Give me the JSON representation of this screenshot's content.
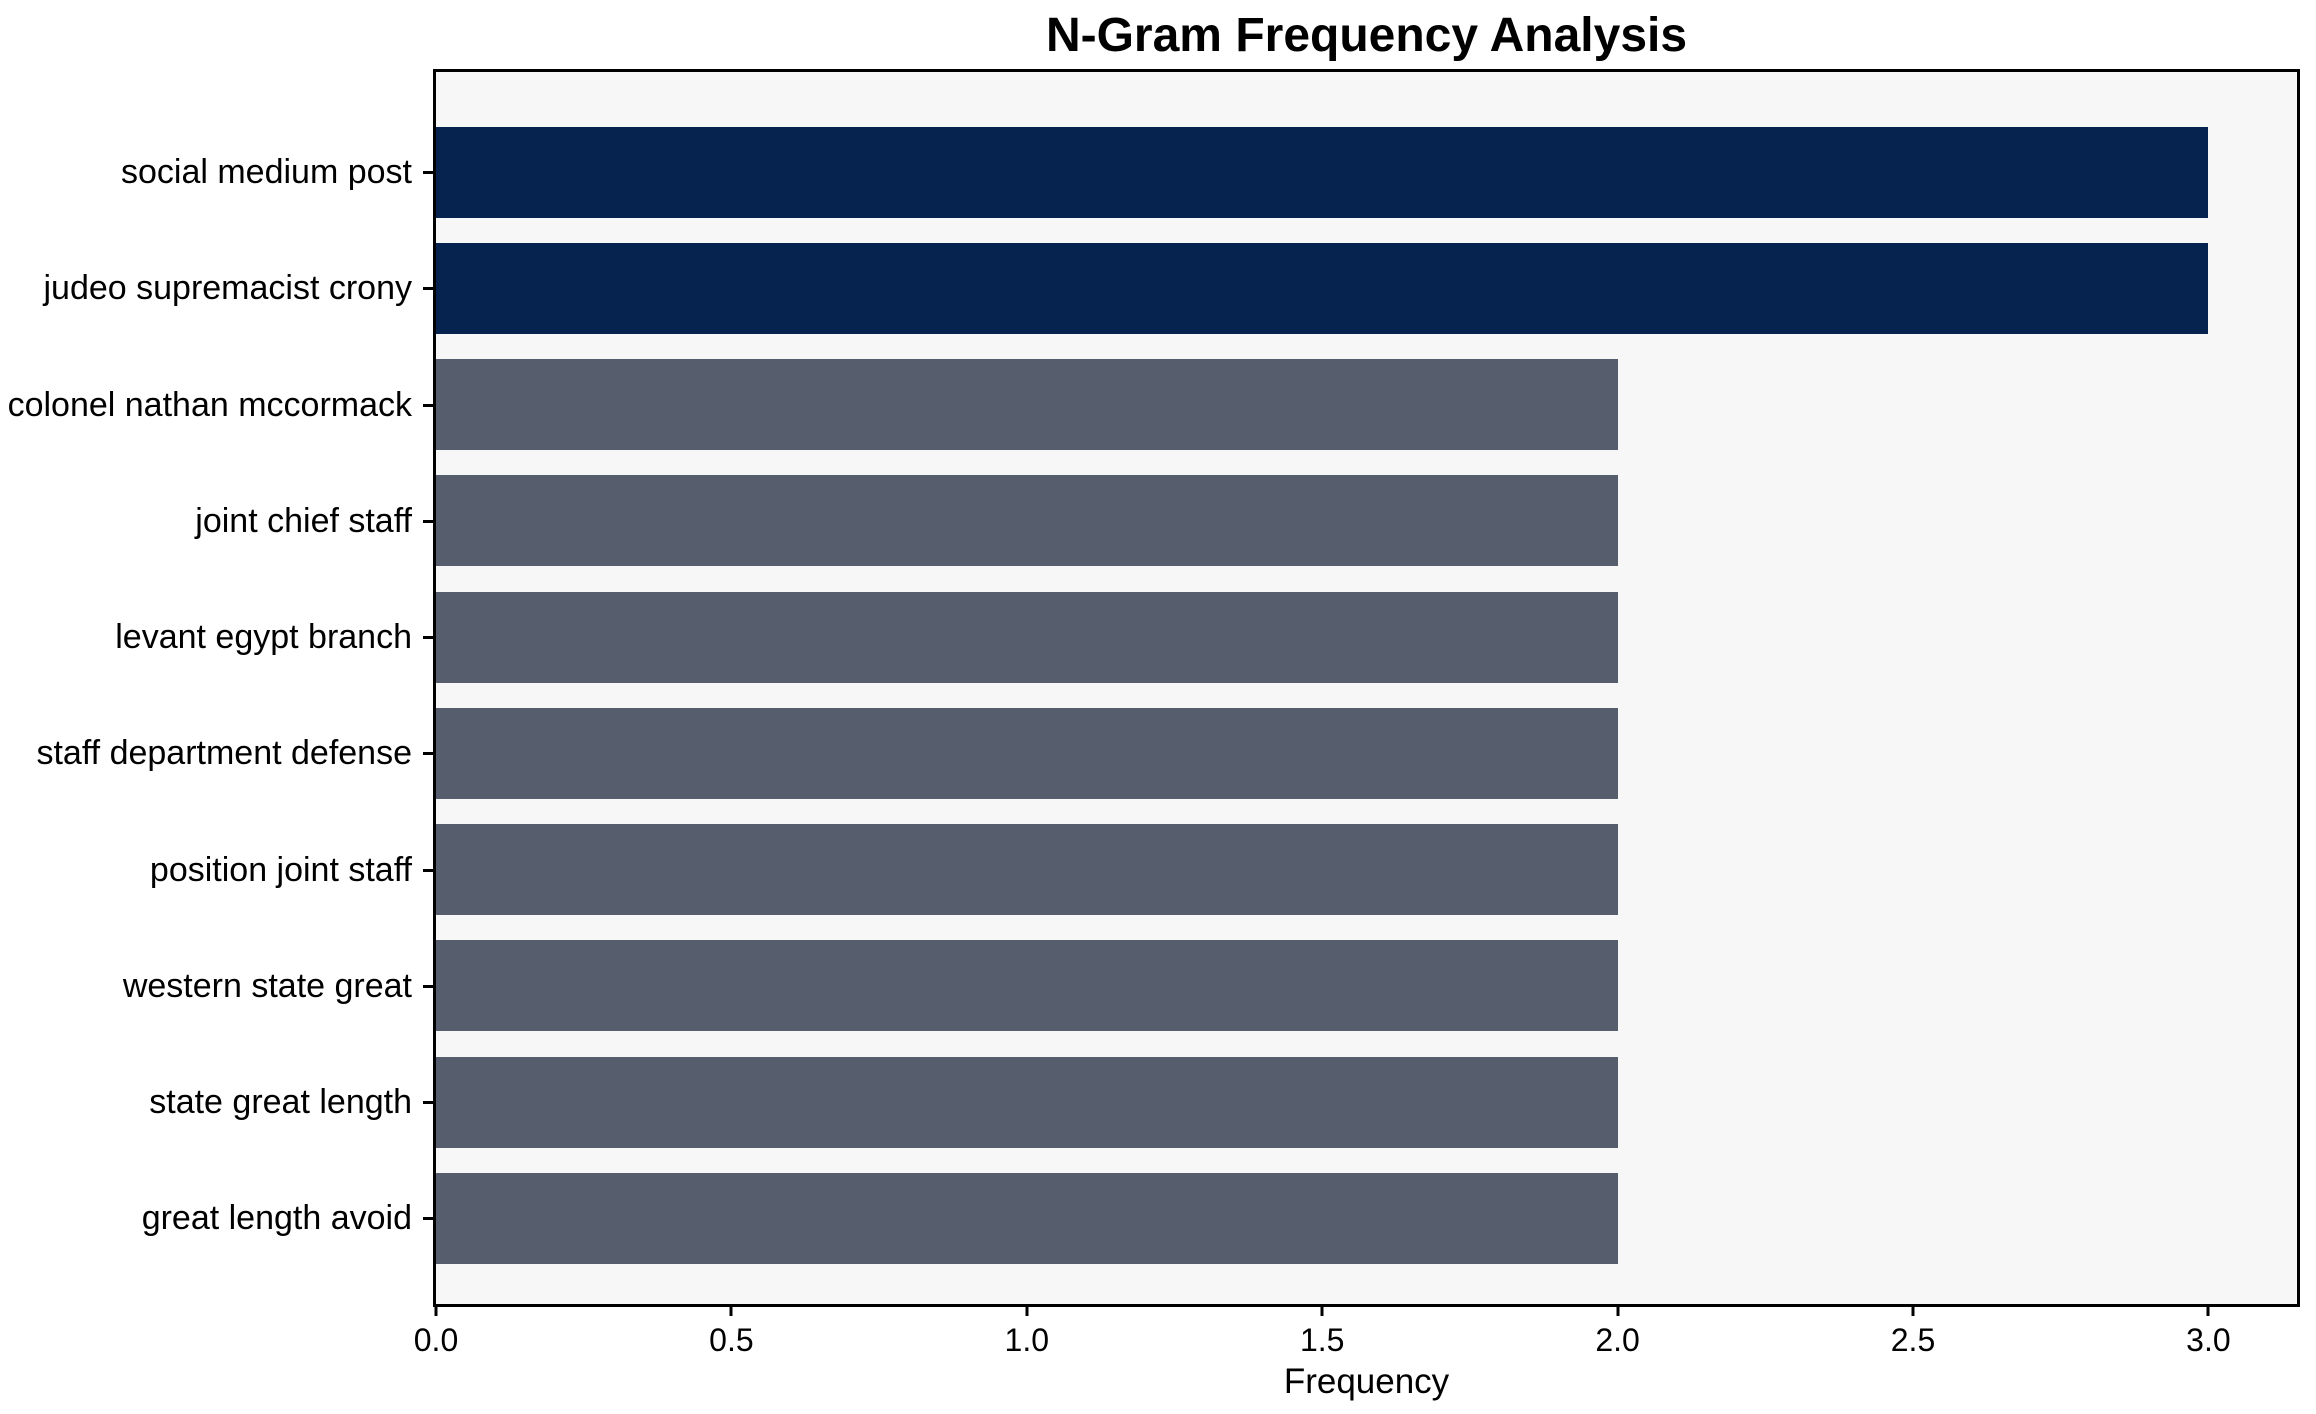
{
  "chart_data": {
    "type": "bar",
    "orientation": "horizontal",
    "title": "N-Gram Frequency Analysis",
    "xlabel": "Frequency",
    "ylabel": "",
    "categories": [
      "social medium post",
      "judeo supremacist crony",
      "colonel nathan mccormack",
      "joint chief staff",
      "levant egypt branch",
      "staff department defense",
      "position joint staff",
      "western state great",
      "state great length",
      "great length avoid"
    ],
    "values": [
      3,
      3,
      2,
      2,
      2,
      2,
      2,
      2,
      2,
      2
    ],
    "bar_colors": [
      "#05234e",
      "#05234e",
      "#565d6c",
      "#565d6c",
      "#565d6c",
      "#565d6c",
      "#565d6c",
      "#565d6c",
      "#565d6c",
      "#565d6c"
    ],
    "x_ticks": [
      0.0,
      0.5,
      1.0,
      1.5,
      2.0,
      2.5,
      3.0
    ],
    "x_tick_labels": [
      "0.0",
      "0.5",
      "1.0",
      "1.5",
      "2.0",
      "2.5",
      "3.0"
    ],
    "xlim": [
      0,
      3.15
    ],
    "grid": false,
    "legend": null,
    "colors": {
      "highlight": "#05234e",
      "default_bar": "#565d6c",
      "plot_background": "#f7f7f8",
      "spine": "#000000",
      "text": "#000000"
    }
  }
}
